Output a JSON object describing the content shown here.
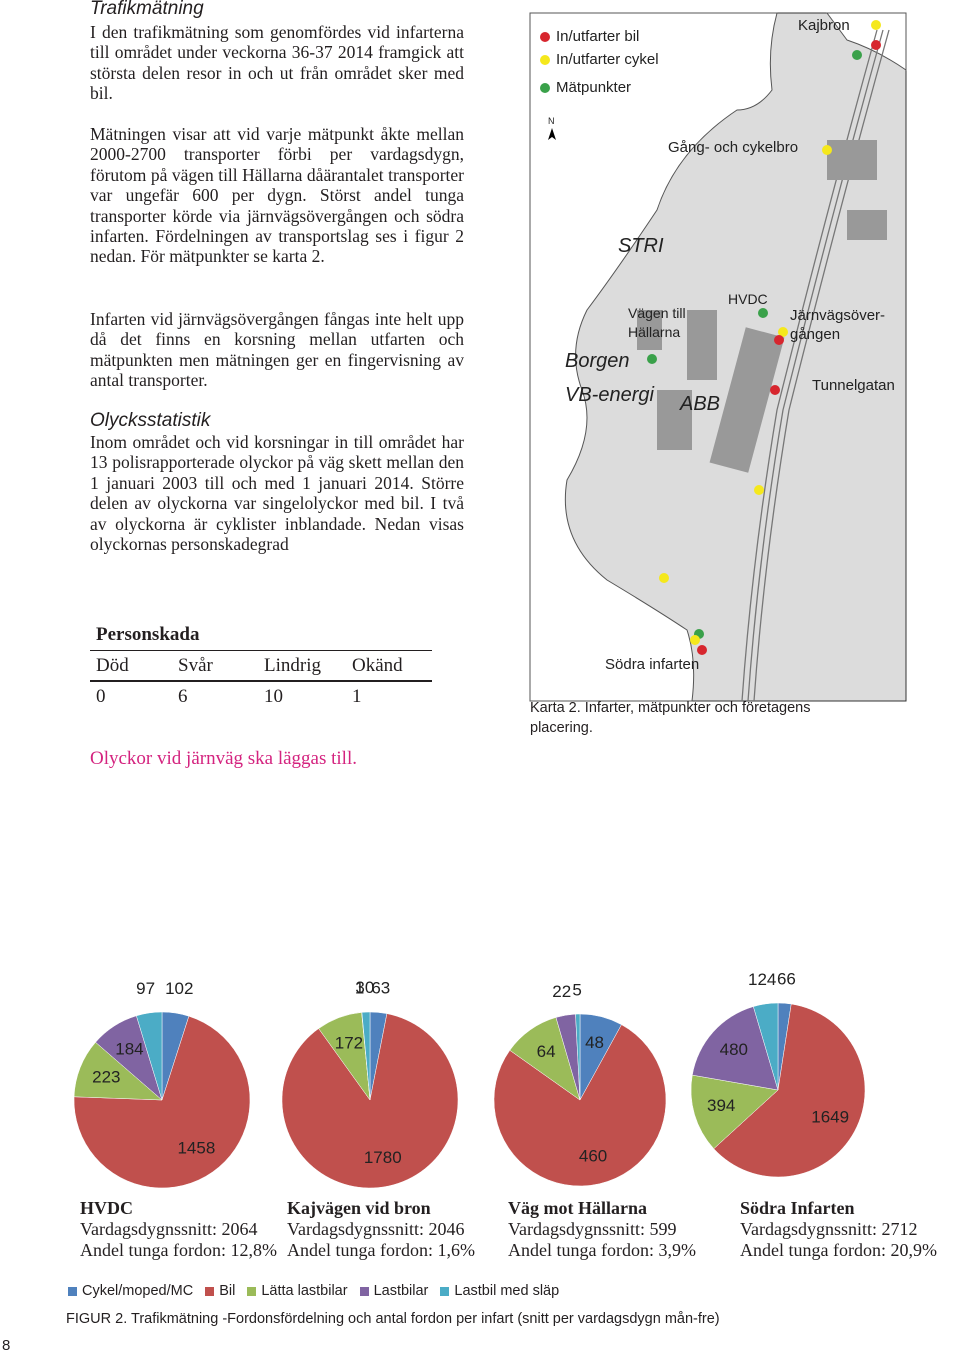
{
  "text": {
    "heading1": "Trafikmätning",
    "p1": "I den trafikmätning som genomfördes vid infarterna till området under veckorna 36-37 2014 framgick att största delen resor in och ut från området sker med bil.",
    "p2": "Mätningen visar att vid varje mätpunkt åkte mellan 2000-2700 transporter förbi per vardagsdygn, förutom på vägen till Hällarna dåärantalet transporter var ungefär 600 per dygn. Störst andel tunga transporter körde via järnvägsövergången och södra infarten. Fördelningen av transportslag ses i figur 2 nedan. För mätpunkter se karta 2.",
    "p3": "Infarten vid järnvägsövergången fångas inte helt upp då det finns en korsning mellan utfarten och mätpunkten men mätningen ger en fingervisning av antal transporter.",
    "heading2": "Olycksstatistik",
    "p4": "Inom området och vid korsningar in till området har 13 polisrapporterade olyckor på väg skett mellan den 1 januari 2003 till och med 1 januari 2014. Större delen av olyckorna var singelolyckor med bil. I två av olyckorna är cyklister inblandade. Nedan visas olyckornas personskadegrad"
  },
  "table": {
    "title": "Personskada",
    "header": [
      "Död",
      "Svår",
      "Lindrig",
      "Okänd"
    ],
    "row": [
      0,
      6,
      10,
      1
    ],
    "note": "Olyckor vid järnväg ska läggas till."
  },
  "map": {
    "legend": [
      "In/utfarter bil",
      "In/utfarter cykel",
      "Mätpunkter"
    ],
    "north": "N",
    "labels": {
      "kajbron": "Kajbron",
      "gang": "Gång- och cykelbro",
      "stri": "STRI",
      "hvdc": "HVDC",
      "vagen": "Vägen till\nHällarna",
      "jarnvag": "Järnvägsöver-\ngången",
      "borgen": "Borgen",
      "vb": "VB-energi",
      "abb": "ABB",
      "tunnel": "Tunnelgatan",
      "sodra": "Södra infarten"
    },
    "caption": "Karta 2. Infarter, mätpunkter och företagens placering."
  },
  "chart_data": {
    "type": "pie",
    "categories": [
      "HVDC",
      "Kajvägen vid bron",
      "Väg mot Hällarna",
      "Södra Infarten"
    ],
    "subtitles": [
      [
        "Vardagsdygnssnitt: 2064",
        "Andel tunga fordon: 12,8%"
      ],
      [
        "Vardagsdygnssnitt: 2046",
        "Andel tunga fordon: 1,6%"
      ],
      [
        "Vardagsdygnssnitt: 599",
        "Andel tunga fordon: 3,9%"
      ],
      [
        "Vardagsdygnssnitt: 2712",
        "Andel tunga fordon: 20,9%"
      ]
    ],
    "series": [
      {
        "name": "Cykel/moped/MC",
        "color": "#4f81bd",
        "values": [
          102,
          63,
          48,
          66
        ]
      },
      {
        "name": "Bil",
        "color": "#c0504d",
        "values": [
          1458,
          1780,
          460,
          1649
        ]
      },
      {
        "name": "Lätta lastbilar",
        "color": "#9bbb59",
        "values": [
          223,
          172,
          64,
          394
        ]
      },
      {
        "name": "Lastbilar",
        "color": "#8064a2",
        "values": [
          184,
          1,
          22,
          480
        ]
      },
      {
        "name": "Lastbil med släp",
        "color": "#4bacc6",
        "values": [
          97,
          30,
          5,
          124
        ]
      }
    ],
    "caption": "FIGUR 2. Trafikmätning -Fordonsfördelning och antal fordon per infart (snitt per vardagsdygn mån-fre)"
  },
  "page_number": 8
}
